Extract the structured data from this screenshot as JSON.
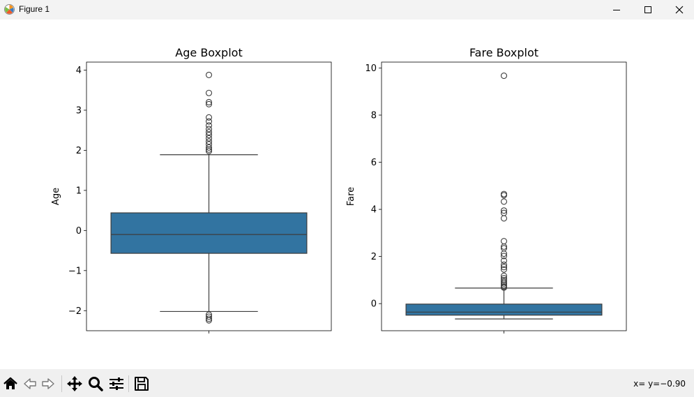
{
  "window": {
    "title": "Figure 1",
    "icons": [
      "matplotlib-icon",
      "minimize-icon",
      "maximize-icon",
      "close-icon"
    ]
  },
  "chart_data": [
    {
      "type": "box",
      "title": "Age Boxplot",
      "xlabel": "",
      "ylabel": "Age",
      "ylim": [
        -2.5,
        4.2
      ],
      "yticks": [
        -2,
        -1,
        0,
        1,
        2,
        3,
        4
      ],
      "ytick_labels": [
        "−2",
        "−1",
        "0",
        "1",
        "2",
        "3",
        "4"
      ],
      "box": {
        "whisker_low": -2.02,
        "q1": -0.57,
        "median": -0.1,
        "q3": 0.44,
        "whisker_high": 1.89
      },
      "outliers": [
        3.88,
        3.43,
        3.2,
        3.15,
        2.82,
        2.72,
        2.62,
        2.53,
        2.45,
        2.38,
        2.3,
        2.22,
        2.15,
        2.07,
        2.02,
        1.98,
        -2.1,
        -2.15,
        -2.2,
        -2.24
      ],
      "color": "#3274a1"
    },
    {
      "type": "box",
      "title": "Fare Boxplot",
      "xlabel": "",
      "ylabel": "Fare",
      "ylim": [
        -1.15,
        10.25
      ],
      "yticks": [
        0,
        2,
        4,
        6,
        8,
        10
      ],
      "ytick_labels": [
        "0",
        "2",
        "4",
        "6",
        "8",
        "10"
      ],
      "box": {
        "whisker_low": -0.65,
        "q1": -0.49,
        "median": -0.36,
        "q3": -0.02,
        "whisker_high": 0.66
      },
      "outliers": [
        9.67,
        4.65,
        4.6,
        4.33,
        3.95,
        3.85,
        3.62,
        2.65,
        2.42,
        2.35,
        2.12,
        2.02,
        1.82,
        1.65,
        1.55,
        1.45,
        1.18,
        1.08,
        1.0,
        0.92,
        0.85,
        0.78,
        0.72,
        0.68
      ],
      "color": "#3274a1"
    }
  ],
  "toolbar": {
    "buttons": [
      "home-icon",
      "back-icon",
      "forward-icon",
      "pan-icon",
      "zoom-icon",
      "configure-subplots-icon",
      "save-icon"
    ],
    "coords": "x= y=−0.90"
  }
}
